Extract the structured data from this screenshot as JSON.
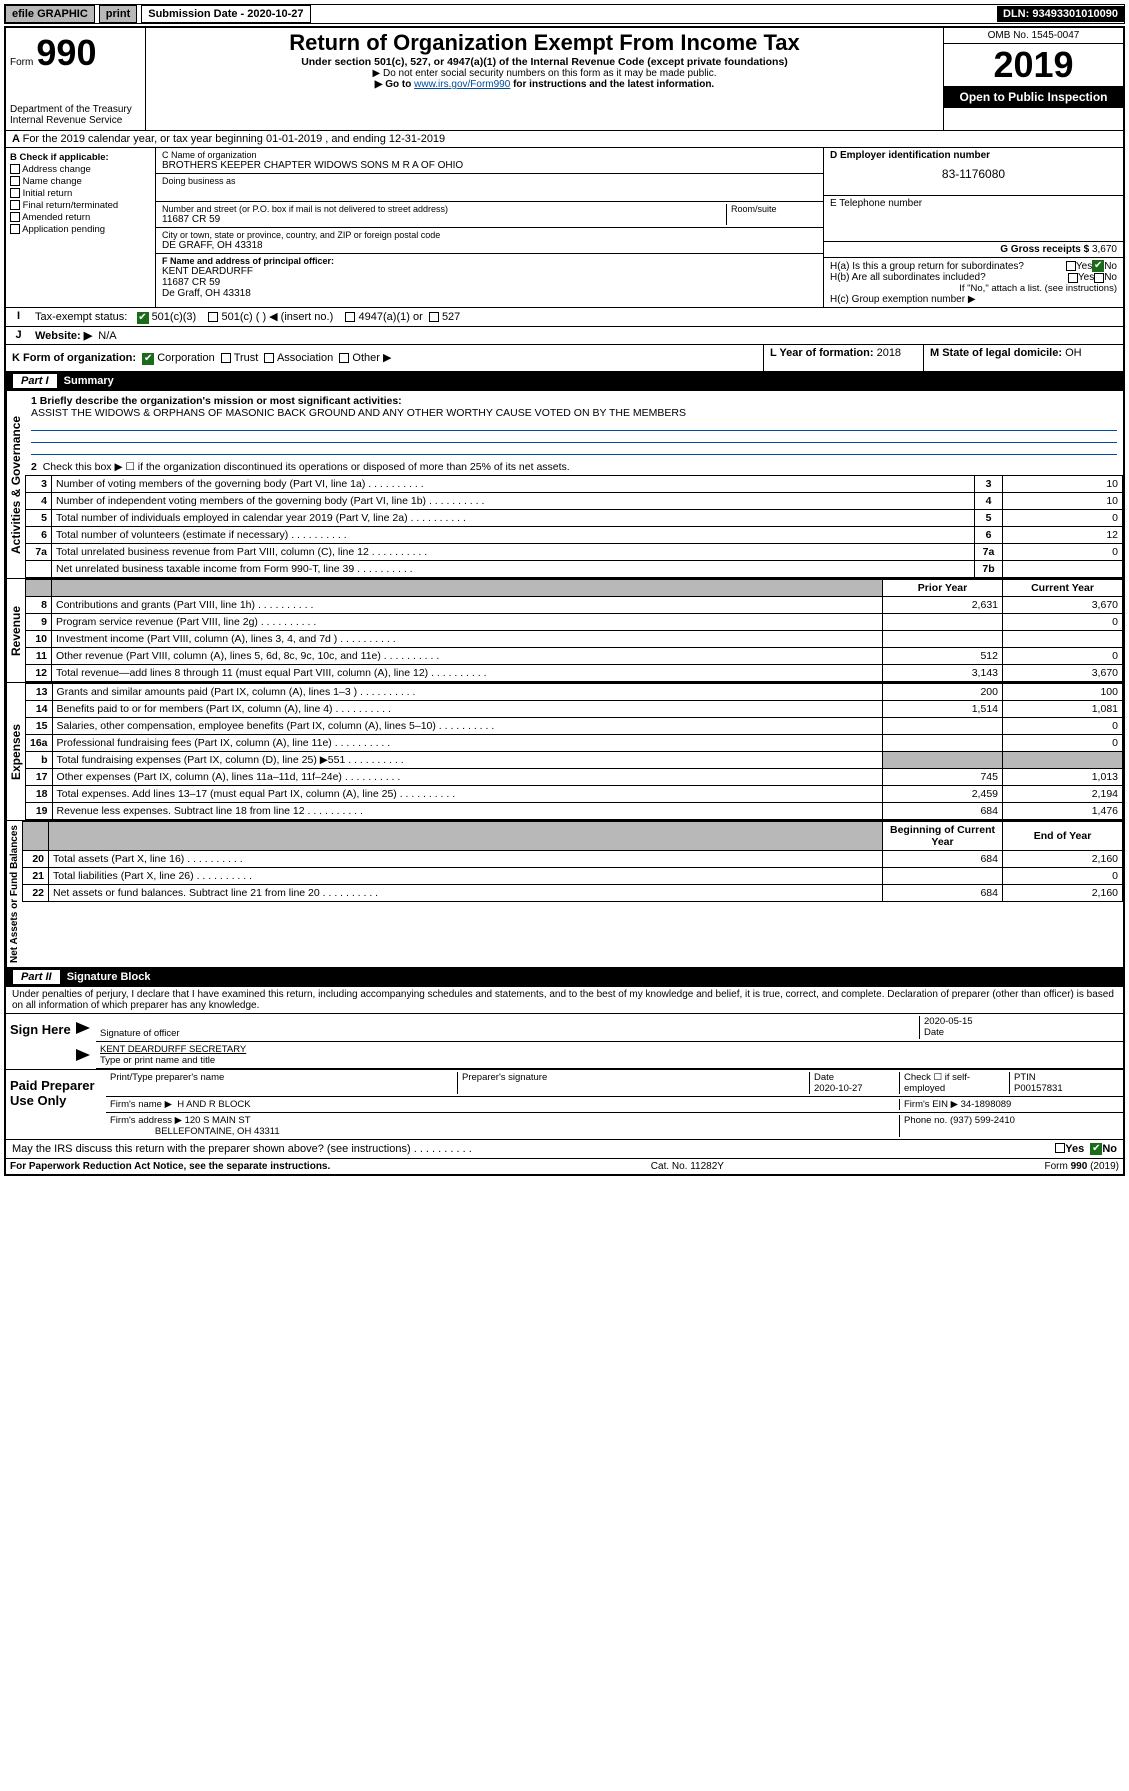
{
  "topbar": {
    "efile": "efile GRAPHIC",
    "print": "print",
    "sub_label": "Submission Date - 2020-10-27",
    "dln": "DLN: 93493301010090"
  },
  "header": {
    "form_word": "Form",
    "form_num": "990",
    "dept": "Department of the Treasury",
    "irs": "Internal Revenue Service",
    "title": "Return of Organization Exempt From Income Tax",
    "sub1": "Under section 501(c), 527, or 4947(a)(1) of the Internal Revenue Code (except private foundations)",
    "sub2": "▶ Do not enter social security numbers on this form as it may be made public.",
    "sub3_pre": "▶ Go to ",
    "sub3_link": "www.irs.gov/Form990",
    "sub3_post": " for instructions and the latest information.",
    "omb": "OMB No. 1545-0047",
    "year": "2019",
    "open": "Open to Public Inspection"
  },
  "lineA": "For the 2019 calendar year, or tax year beginning 01-01-2019   , and ending 12-31-2019",
  "colB": {
    "title": "B Check if applicable:",
    "c1": "Address change",
    "c2": "Name change",
    "c3": "Initial return",
    "c4": "Final return/terminated",
    "c5": "Amended return",
    "c6": "Application pending"
  },
  "mid": {
    "c_lbl": "C Name of organization",
    "c_val": "BROTHERS KEEPER CHAPTER WIDOWS SONS M R A OF OHIO",
    "dba_lbl": "Doing business as",
    "addr_lbl": "Number and street (or P.O. box if mail is not delivered to street address)",
    "room_lbl": "Room/suite",
    "addr_val": "11687 CR 59",
    "city_lbl": "City or town, state or province, country, and ZIP or foreign postal code",
    "city_val": "DE GRAFF, OH  43318",
    "f_lbl": "F  Name and address of principal officer:",
    "f_name": "KENT DEARDURFF",
    "f_addr1": "11687 CR 59",
    "f_addr2": "De Graff, OH  43318"
  },
  "right": {
    "d_lbl": "D Employer identification number",
    "d_val": "83-1176080",
    "e_lbl": "E Telephone number",
    "g_lbl": "G Gross receipts $",
    "g_val": "3,670",
    "ha_lbl": "H(a)  Is this a group return for subordinates?",
    "hb_lbl": "H(b)  Are all subordinates included?",
    "hb_note": "If \"No,\" attach a list. (see instructions)",
    "hc_lbl": "H(c)  Group exemption number ▶",
    "yes": "Yes",
    "no": "No"
  },
  "rowI": {
    "lbl": "Tax-exempt status:",
    "o1": "501(c)(3)",
    "o2": "501(c) (  ) ◀ (insert no.)",
    "o3": "4947(a)(1) or",
    "o4": "527"
  },
  "rowJ": {
    "lbl": "Website: ▶",
    "val": "N/A"
  },
  "rowK": {
    "lbl": "K Form of organization:",
    "o1": "Corporation",
    "o2": "Trust",
    "o3": "Association",
    "o4": "Other ▶",
    "l_lbl": "L Year of formation:",
    "l_val": "2018",
    "m_lbl": "M State of legal domicile:",
    "m_val": "OH"
  },
  "part1": {
    "hdr": "Part I",
    "title": "Summary",
    "q1_lbl": "1  Briefly describe the organization's mission or most significant activities:",
    "q1_val": "ASSIST THE WIDOWS & ORPHANS OF MASONIC BACK GROUND AND ANY OTHER WORTHY CAUSE VOTED ON BY THE MEMBERS",
    "q2": "Check this box ▶ ☐  if the organization discontinued its operations or disposed of more than 25% of its net assets.",
    "rows_simple": [
      {
        "n": "3",
        "d": "Number of voting members of the governing body (Part VI, line 1a)",
        "rn": "3",
        "v": "10"
      },
      {
        "n": "4",
        "d": "Number of independent voting members of the governing body (Part VI, line 1b)",
        "rn": "4",
        "v": "10"
      },
      {
        "n": "5",
        "d": "Total number of individuals employed in calendar year 2019 (Part V, line 2a)",
        "rn": "5",
        "v": "0"
      },
      {
        "n": "6",
        "d": "Total number of volunteers (estimate if necessary)",
        "rn": "6",
        "v": "12"
      },
      {
        "n": "7a",
        "d": "Total unrelated business revenue from Part VIII, column (C), line 12",
        "rn": "7a",
        "v": "0"
      },
      {
        "n": "",
        "d": "Net unrelated business taxable income from Form 990-T, line 39",
        "rn": "7b",
        "v": ""
      }
    ],
    "col_prior": "Prior Year",
    "col_curr": "Current Year",
    "revenue_rows": [
      {
        "n": "8",
        "d": "Contributions and grants (Part VIII, line 1h)",
        "p": "2,631",
        "c": "3,670"
      },
      {
        "n": "9",
        "d": "Program service revenue (Part VIII, line 2g)",
        "p": "",
        "c": "0"
      },
      {
        "n": "10",
        "d": "Investment income (Part VIII, column (A), lines 3, 4, and 7d )",
        "p": "",
        "c": ""
      },
      {
        "n": "11",
        "d": "Other revenue (Part VIII, column (A), lines 5, 6d, 8c, 9c, 10c, and 11e)",
        "p": "512",
        "c": "0"
      },
      {
        "n": "12",
        "d": "Total revenue—add lines 8 through 11 (must equal Part VIII, column (A), line 12)",
        "p": "3,143",
        "c": "3,670"
      }
    ],
    "expense_rows": [
      {
        "n": "13",
        "d": "Grants and similar amounts paid (Part IX, column (A), lines 1–3 )",
        "p": "200",
        "c": "100"
      },
      {
        "n": "14",
        "d": "Benefits paid to or for members (Part IX, column (A), line 4)",
        "p": "1,514",
        "c": "1,081"
      },
      {
        "n": "15",
        "d": "Salaries, other compensation, employee benefits (Part IX, column (A), lines 5–10)",
        "p": "",
        "c": "0"
      },
      {
        "n": "16a",
        "d": "Professional fundraising fees (Part IX, column (A), line 11e)",
        "p": "",
        "c": "0"
      },
      {
        "n": "b",
        "d": "Total fundraising expenses (Part IX, column (D), line 25) ▶551",
        "p": "__shade__",
        "c": "__shade__"
      },
      {
        "n": "17",
        "d": "Other expenses (Part IX, column (A), lines 11a–11d, 11f–24e)",
        "p": "745",
        "c": "1,013"
      },
      {
        "n": "18",
        "d": "Total expenses. Add lines 13–17 (must equal Part IX, column (A), line 25)",
        "p": "2,459",
        "c": "2,194"
      },
      {
        "n": "19",
        "d": "Revenue less expenses. Subtract line 18 from line 12",
        "p": "684",
        "c": "1,476"
      }
    ],
    "col_begin": "Beginning of Current Year",
    "col_end": "End of Year",
    "net_rows": [
      {
        "n": "20",
        "d": "Total assets (Part X, line 16)",
        "p": "684",
        "c": "2,160"
      },
      {
        "n": "21",
        "d": "Total liabilities (Part X, line 26)",
        "p": "",
        "c": "0"
      },
      {
        "n": "22",
        "d": "Net assets or fund balances. Subtract line 21 from line 20",
        "p": "684",
        "c": "2,160"
      }
    ],
    "vlab_ag": "Activities & Governance",
    "vlab_rev": "Revenue",
    "vlab_exp": "Expenses",
    "vlab_net": "Net Assets or Fund Balances"
  },
  "part2": {
    "hdr": "Part II",
    "title": "Signature Block",
    "decl": "Under penalties of perjury, I declare that I have examined this return, including accompanying schedules and statements, and to the best of my knowledge and belief, it is true, correct, and complete. Declaration of preparer (other than officer) is based on all information of which preparer has any knowledge.",
    "sign_here": "Sign Here",
    "sig_officer": "Signature of officer",
    "sig_date": "2020-05-15",
    "date_lbl": "Date",
    "typed": "KENT DEARDURFF SECRETARY",
    "typed_lbl": "Type or print name and title",
    "paid": "Paid Preparer Use Only",
    "p_name_lbl": "Print/Type preparer's name",
    "p_sig_lbl": "Preparer's signature",
    "p_date_lbl": "Date",
    "p_date": "2020-10-27",
    "p_check_lbl": "Check ☐ if self-employed",
    "ptin_lbl": "PTIN",
    "ptin": "P00157831",
    "firm_name_lbl": "Firm's name   ▶",
    "firm_name": "H AND R BLOCK",
    "firm_ein_lbl": "Firm's EIN ▶",
    "firm_ein": "34-1898089",
    "firm_addr_lbl": "Firm's address ▶",
    "firm_addr1": "120 S MAIN ST",
    "firm_addr2": "BELLEFONTAINE, OH  43311",
    "phone_lbl": "Phone no.",
    "phone": "(937) 599-2410",
    "discuss": "May the IRS discuss this return with the preparer shown above? (see instructions)"
  },
  "footer": {
    "left": "For Paperwork Reduction Act Notice, see the separate instructions.",
    "mid": "Cat. No. 11282Y",
    "right": "Form 990 (2019)"
  },
  "colors": {
    "link": "#004b9b",
    "shade": "#b8b8b8",
    "check_green": "#1a6b1a"
  }
}
